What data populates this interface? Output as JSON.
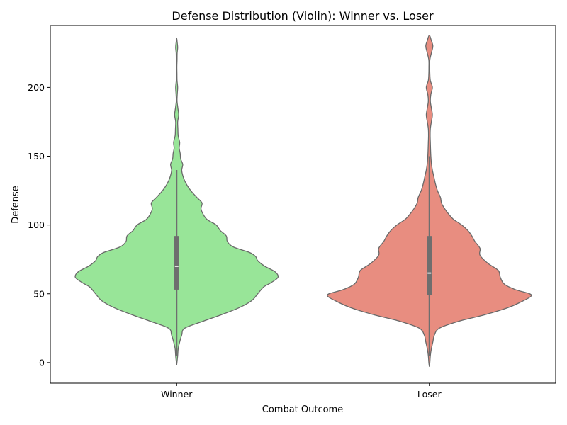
{
  "chart_data": {
    "type": "violin",
    "title": "Defense Distribution (Violin): Winner vs. Loser",
    "xlabel": "Combat Outcome",
    "ylabel": "Defense",
    "ylim": [
      -15,
      245
    ],
    "yticks": [
      0,
      50,
      100,
      150,
      200
    ],
    "categories": [
      "Winner",
      "Loser"
    ],
    "series": [
      {
        "category": "Winner",
        "color": "#98e598",
        "box": {
          "q1": 53,
          "median": 70,
          "q3": 92,
          "whisker_low": 5,
          "whisker_high": 140
        },
        "min": -2,
        "max": 236,
        "density": [
          [
            -2,
            0.0
          ],
          [
            5,
            0.01
          ],
          [
            10,
            0.015
          ],
          [
            15,
            0.03
          ],
          [
            20,
            0.05
          ],
          [
            25,
            0.08
          ],
          [
            30,
            0.26
          ],
          [
            35,
            0.45
          ],
          [
            40,
            0.62
          ],
          [
            45,
            0.74
          ],
          [
            50,
            0.8
          ],
          [
            55,
            0.86
          ],
          [
            58,
            0.93
          ],
          [
            62,
            1.0
          ],
          [
            66,
            0.97
          ],
          [
            70,
            0.87
          ],
          [
            74,
            0.8
          ],
          [
            77,
            0.78
          ],
          [
            80,
            0.72
          ],
          [
            84,
            0.56
          ],
          [
            88,
            0.5
          ],
          [
            92,
            0.49
          ],
          [
            96,
            0.43
          ],
          [
            100,
            0.39
          ],
          [
            104,
            0.3
          ],
          [
            108,
            0.26
          ],
          [
            112,
            0.24
          ],
          [
            116,
            0.25
          ],
          [
            120,
            0.2
          ],
          [
            124,
            0.15
          ],
          [
            128,
            0.11
          ],
          [
            132,
            0.08
          ],
          [
            136,
            0.06
          ],
          [
            140,
            0.05
          ],
          [
            144,
            0.06
          ],
          [
            148,
            0.04
          ],
          [
            152,
            0.035
          ],
          [
            156,
            0.025
          ],
          [
            160,
            0.03
          ],
          [
            165,
            0.015
          ],
          [
            170,
            0.012
          ],
          [
            175,
            0.01
          ],
          [
            180,
            0.02
          ],
          [
            185,
            0.012
          ],
          [
            190,
            0.004
          ],
          [
            195,
            0.006
          ],
          [
            200,
            0.01
          ],
          [
            205,
            0.004
          ],
          [
            210,
            0.003
          ],
          [
            215,
            0.002
          ],
          [
            220,
            0.004
          ],
          [
            225,
            0.005
          ],
          [
            229,
            0.01
          ],
          [
            233,
            0.005
          ],
          [
            236,
            0.0
          ]
        ]
      },
      {
        "category": "Loser",
        "color": "#e88d80",
        "box": {
          "q1": 49,
          "median": 65,
          "q3": 92,
          "whisker_low": 5,
          "whisker_high": 150
        },
        "min": -3,
        "max": 238,
        "density": [
          [
            -3,
            0.0
          ],
          [
            0,
            0.005
          ],
          [
            5,
            0.01
          ],
          [
            10,
            0.02
          ],
          [
            15,
            0.035
          ],
          [
            20,
            0.05
          ],
          [
            25,
            0.1
          ],
          [
            30,
            0.29
          ],
          [
            35,
            0.56
          ],
          [
            40,
            0.78
          ],
          [
            45,
            0.93
          ],
          [
            48,
            1.0
          ],
          [
            50,
            0.99
          ],
          [
            53,
            0.85
          ],
          [
            57,
            0.74
          ],
          [
            62,
            0.7
          ],
          [
            67,
            0.68
          ],
          [
            72,
            0.58
          ],
          [
            78,
            0.5
          ],
          [
            83,
            0.5
          ],
          [
            88,
            0.45
          ],
          [
            92,
            0.42
          ],
          [
            96,
            0.38
          ],
          [
            100,
            0.32
          ],
          [
            104,
            0.24
          ],
          [
            108,
            0.19
          ],
          [
            112,
            0.15
          ],
          [
            116,
            0.12
          ],
          [
            120,
            0.11
          ],
          [
            125,
            0.08
          ],
          [
            130,
            0.06
          ],
          [
            135,
            0.045
          ],
          [
            140,
            0.03
          ],
          [
            145,
            0.02
          ],
          [
            150,
            0.015
          ],
          [
            155,
            0.012
          ],
          [
            160,
            0.01
          ],
          [
            165,
            0.008
          ],
          [
            170,
            0.01
          ],
          [
            175,
            0.02
          ],
          [
            180,
            0.03
          ],
          [
            185,
            0.02
          ],
          [
            190,
            0.01
          ],
          [
            195,
            0.015
          ],
          [
            200,
            0.03
          ],
          [
            205,
            0.01
          ],
          [
            210,
            0.005
          ],
          [
            215,
            0.004
          ],
          [
            220,
            0.005
          ],
          [
            225,
            0.02
          ],
          [
            230,
            0.035
          ],
          [
            234,
            0.02
          ],
          [
            238,
            0.0
          ]
        ]
      }
    ],
    "edge_color": "#696969",
    "box_color": "#6e6e6e",
    "median_color": "#ffffff",
    "grid": false,
    "legend": "none"
  }
}
